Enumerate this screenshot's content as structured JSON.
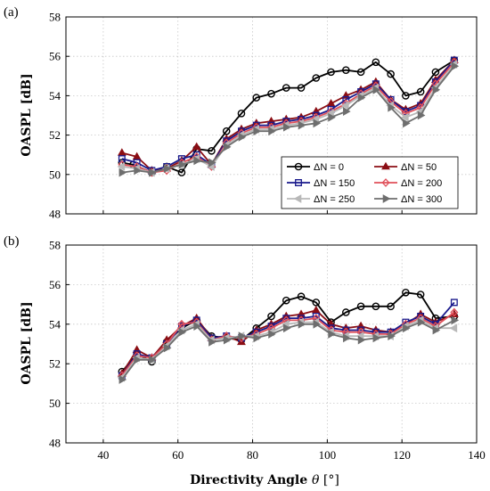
{
  "figure": {
    "xlabel_main": "Directivity Angle ",
    "xlabel_theta": "θ",
    "xlabel_unit": " [°]"
  },
  "chart_data": [
    {
      "type": "line",
      "panel_label": "(a)",
      "xlabel": "",
      "ylabel": "OASPL [dB]",
      "xlim": [
        30,
        140
      ],
      "ylim": [
        48,
        58
      ],
      "x_ticks": [
        40,
        60,
        80,
        100,
        120,
        140
      ],
      "y_ticks": [
        48,
        50,
        52,
        54,
        56,
        58
      ],
      "grid": true,
      "legend_position": "lower-right",
      "series": [
        {
          "name": "ΔN = 0",
          "color": "#000000",
          "marker": "circle",
          "x": [
            45,
            48,
            53,
            57,
            61,
            65,
            69,
            73,
            77,
            81,
            85,
            89,
            93,
            97,
            101,
            105,
            109,
            113,
            117,
            121,
            125,
            129,
            134
          ],
          "y": [
            50.6,
            50.5,
            50.1,
            50.4,
            50.1,
            51.3,
            51.2,
            52.2,
            53.1,
            53.9,
            54.1,
            54.4,
            54.4,
            54.9,
            55.2,
            55.3,
            55.2,
            55.7,
            55.1,
            54.0,
            54.2,
            55.2,
            55.8
          ]
        },
        {
          "name": "ΔN = 50",
          "color": "#8b0e14",
          "marker": "triangle-up",
          "x": [
            45,
            49,
            53,
            57,
            61,
            65,
            69,
            73,
            77,
            81,
            85,
            89,
            93,
            97,
            101,
            105,
            109,
            113,
            117,
            121,
            125,
            129,
            134
          ],
          "y": [
            51.1,
            50.9,
            50.2,
            50.3,
            50.7,
            51.4,
            50.5,
            51.8,
            52.3,
            52.6,
            52.7,
            52.8,
            52.9,
            53.2,
            53.6,
            54.0,
            54.3,
            54.7,
            53.8,
            53.3,
            53.6,
            54.8,
            55.8
          ]
        },
        {
          "name": "ΔN = 150",
          "color": "#1a1a8c",
          "marker": "square",
          "x": [
            45,
            49,
            53,
            57,
            61,
            65,
            69,
            73,
            77,
            81,
            85,
            89,
            93,
            97,
            101,
            105,
            109,
            113,
            117,
            121,
            125,
            129,
            134
          ],
          "y": [
            50.8,
            50.6,
            50.2,
            50.4,
            50.8,
            51.0,
            50.5,
            51.7,
            52.2,
            52.5,
            52.5,
            52.7,
            52.8,
            53.0,
            53.3,
            53.8,
            54.2,
            54.6,
            53.8,
            53.2,
            53.5,
            54.7,
            55.8
          ]
        },
        {
          "name": "ΔN = 200",
          "color": "#e0505a",
          "marker": "diamond",
          "x": [
            45,
            49,
            53,
            57,
            61,
            65,
            69,
            73,
            77,
            81,
            85,
            89,
            93,
            97,
            101,
            105,
            109,
            113,
            117,
            121,
            125,
            129,
            134
          ],
          "y": [
            50.5,
            50.4,
            50.1,
            50.2,
            50.6,
            50.9,
            50.4,
            51.6,
            52.1,
            52.4,
            52.4,
            52.6,
            52.7,
            52.9,
            53.2,
            53.6,
            54.1,
            54.5,
            53.7,
            53.1,
            53.4,
            54.6,
            55.7
          ]
        },
        {
          "name": "ΔN = 250",
          "color": "#b8b8b8",
          "marker": "triangle-left",
          "x": [
            45,
            49,
            53,
            57,
            61,
            65,
            69,
            73,
            77,
            81,
            85,
            89,
            93,
            97,
            101,
            105,
            109,
            113,
            117,
            121,
            125,
            129,
            134
          ],
          "y": [
            50.4,
            50.3,
            50.1,
            50.3,
            50.5,
            50.8,
            50.4,
            51.5,
            52.0,
            52.3,
            52.3,
            52.5,
            52.6,
            52.8,
            53.1,
            53.5,
            54.0,
            54.4,
            53.5,
            52.9,
            53.2,
            54.4,
            55.6
          ]
        },
        {
          "name": "ΔN = 300",
          "color": "#6e6e6e",
          "marker": "triangle-right",
          "x": [
            45,
            49,
            53,
            57,
            61,
            65,
            69,
            73,
            77,
            81,
            85,
            89,
            93,
            97,
            101,
            105,
            109,
            113,
            117,
            121,
            125,
            129,
            134
          ],
          "y": [
            50.1,
            50.2,
            50.1,
            50.3,
            50.5,
            50.7,
            50.6,
            51.4,
            51.9,
            52.2,
            52.2,
            52.4,
            52.5,
            52.6,
            52.9,
            53.2,
            53.9,
            54.3,
            53.4,
            52.6,
            53.0,
            54.3,
            55.5
          ]
        }
      ]
    },
    {
      "type": "line",
      "panel_label": "(b)",
      "xlabel": "Directivity Angle θ [°]",
      "ylabel": "OASPL [dB]",
      "xlim": [
        30,
        140
      ],
      "ylim": [
        48,
        58
      ],
      "x_ticks": [
        40,
        60,
        80,
        100,
        120,
        140
      ],
      "y_ticks": [
        48,
        50,
        52,
        54,
        56,
        58
      ],
      "grid": true,
      "series": [
        {
          "name": "ΔN = 0",
          "color": "#000000",
          "marker": "circle",
          "x": [
            45,
            49,
            53,
            57,
            61,
            65,
            69,
            73,
            77,
            81,
            85,
            89,
            93,
            97,
            101,
            105,
            109,
            113,
            117,
            121,
            125,
            129,
            134
          ],
          "y": [
            51.6,
            52.5,
            52.1,
            53.1,
            53.8,
            54.2,
            53.4,
            53.3,
            53.2,
            53.8,
            54.4,
            55.2,
            55.4,
            55.1,
            54.1,
            54.6,
            54.9,
            54.9,
            54.9,
            55.6,
            55.5,
            54.3,
            54.4
          ]
        },
        {
          "name": "ΔN = 50",
          "color": "#8b0e14",
          "marker": "triangle-up",
          "x": [
            45,
            49,
            53,
            57,
            61,
            65,
            69,
            73,
            77,
            81,
            85,
            89,
            93,
            97,
            101,
            105,
            109,
            113,
            117,
            121,
            125,
            129,
            134
          ],
          "y": [
            51.5,
            52.7,
            52.3,
            53.2,
            53.9,
            54.3,
            53.3,
            53.4,
            53.1,
            53.7,
            54.0,
            54.4,
            54.5,
            54.7,
            54.0,
            53.8,
            53.9,
            53.7,
            53.6,
            54.0,
            54.5,
            54.1,
            54.5
          ]
        },
        {
          "name": "ΔN = 150",
          "color": "#1a1a8c",
          "marker": "square",
          "x": [
            45,
            49,
            53,
            57,
            61,
            65,
            69,
            73,
            77,
            81,
            85,
            89,
            93,
            97,
            101,
            105,
            109,
            113,
            117,
            121,
            125,
            129,
            134
          ],
          "y": [
            51.4,
            52.5,
            52.3,
            53.0,
            53.9,
            54.2,
            53.3,
            53.4,
            53.3,
            53.6,
            53.9,
            54.3,
            54.3,
            54.4,
            53.8,
            53.7,
            53.7,
            53.6,
            53.6,
            54.1,
            54.4,
            54.0,
            55.1
          ]
        },
        {
          "name": "ΔN = 200",
          "color": "#e0505a",
          "marker": "diamond",
          "x": [
            45,
            49,
            53,
            57,
            61,
            65,
            69,
            73,
            77,
            81,
            85,
            89,
            93,
            97,
            101,
            105,
            109,
            113,
            117,
            121,
            125,
            129,
            134
          ],
          "y": [
            51.4,
            52.4,
            52.3,
            53.0,
            54.0,
            54.1,
            53.2,
            53.4,
            53.3,
            53.5,
            53.8,
            54.2,
            54.2,
            54.3,
            53.7,
            53.6,
            53.6,
            53.5,
            53.5,
            54.0,
            54.3,
            53.9,
            54.6
          ]
        },
        {
          "name": "ΔN = 250",
          "color": "#b8b8b8",
          "marker": "triangle-left",
          "x": [
            45,
            49,
            53,
            57,
            61,
            65,
            69,
            73,
            77,
            81,
            85,
            89,
            93,
            97,
            101,
            105,
            109,
            113,
            117,
            121,
            125,
            129,
            134
          ],
          "y": [
            51.3,
            52.3,
            52.2,
            52.9,
            53.7,
            54.0,
            53.2,
            53.3,
            53.4,
            53.4,
            53.6,
            54.0,
            54.1,
            54.1,
            53.6,
            53.4,
            53.4,
            53.4,
            53.4,
            53.9,
            54.2,
            53.8,
            53.8
          ]
        },
        {
          "name": "ΔN = 300",
          "color": "#6e6e6e",
          "marker": "triangle-right",
          "x": [
            45,
            49,
            53,
            57,
            61,
            65,
            69,
            73,
            77,
            81,
            85,
            89,
            93,
            97,
            101,
            105,
            109,
            113,
            117,
            121,
            125,
            129,
            134
          ],
          "y": [
            51.2,
            52.2,
            52.2,
            52.8,
            53.6,
            53.9,
            53.1,
            53.2,
            53.4,
            53.3,
            53.5,
            53.8,
            54.0,
            54.0,
            53.5,
            53.3,
            53.2,
            53.3,
            53.4,
            53.8,
            54.1,
            53.7,
            54.2
          ]
        }
      ]
    }
  ]
}
